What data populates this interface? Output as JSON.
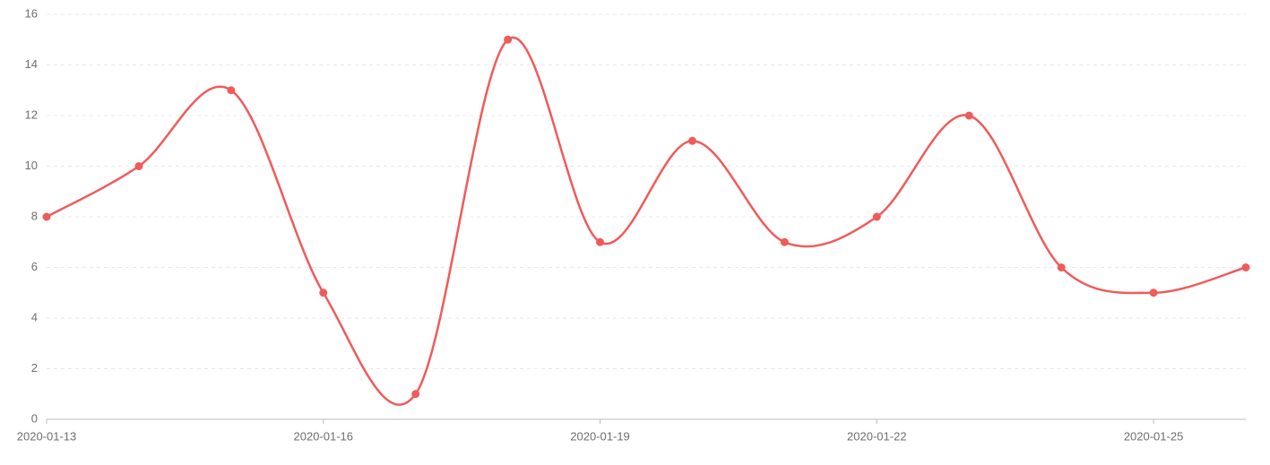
{
  "chart_data": {
    "type": "line",
    "categories": [
      "2020-01-13",
      null,
      null,
      "2020-01-16",
      null,
      null,
      "2020-01-19",
      null,
      null,
      "2020-01-22",
      null,
      null,
      "2020-01-25",
      null
    ],
    "values": [
      8,
      10,
      13,
      5,
      1,
      15,
      7,
      11,
      7,
      8,
      12,
      6,
      5,
      6
    ],
    "color": "#f05a5a",
    "smooth": true,
    "ylim": [
      0,
      16
    ],
    "yticks": [
      0,
      2,
      4,
      6,
      8,
      10,
      12,
      14,
      16
    ],
    "grid": true
  }
}
